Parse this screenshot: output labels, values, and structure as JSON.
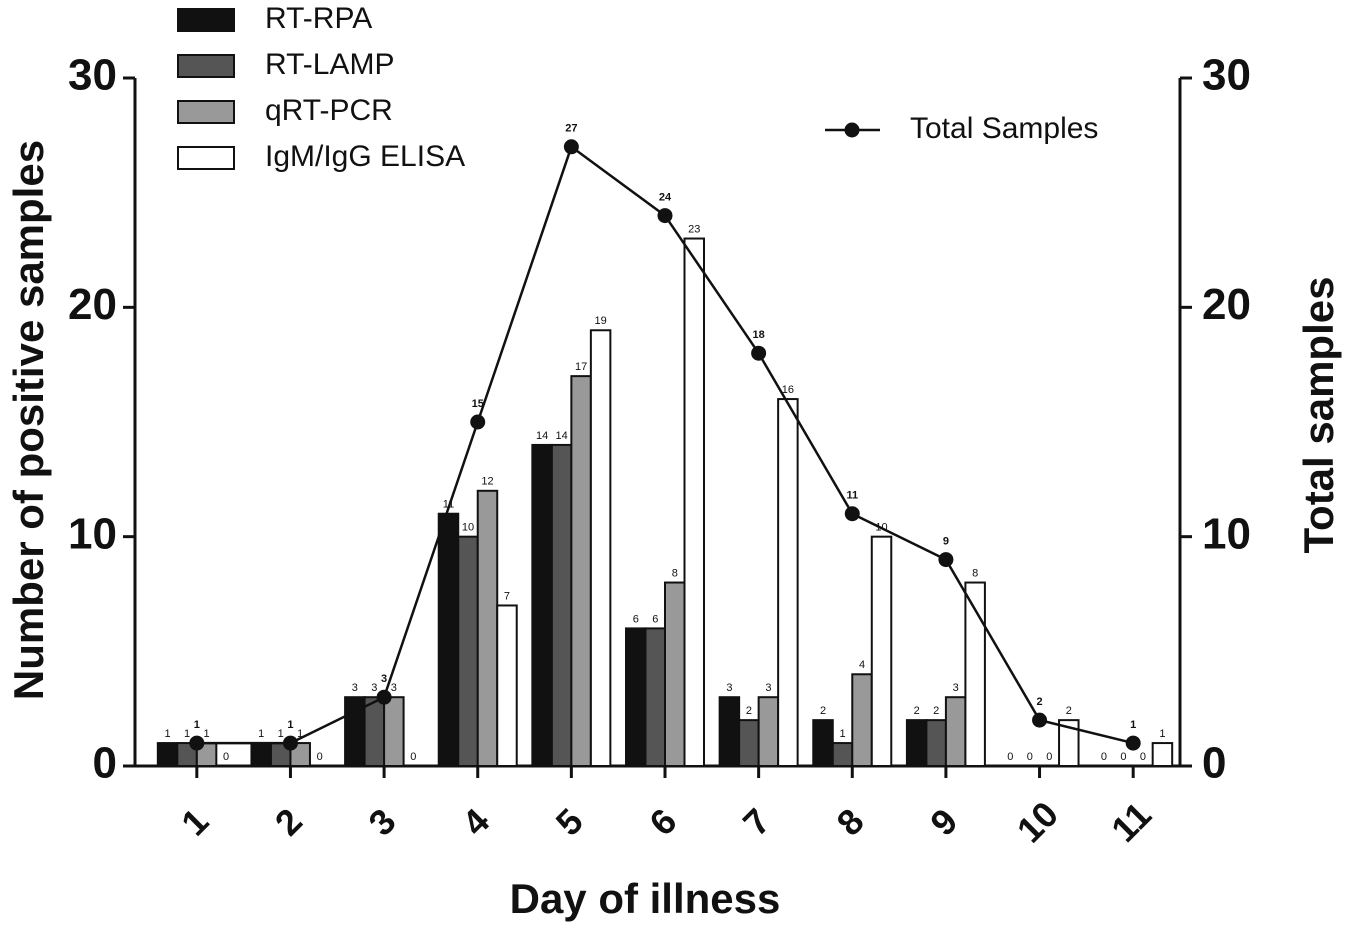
{
  "chart_data": {
    "type": "bar",
    "xlabel": "Day of illness",
    "ylabel": "Number of positive samples",
    "y2label": "Total samples",
    "categories": [
      "1",
      "2",
      "3",
      "4",
      "5",
      "6",
      "7",
      "8",
      "9",
      "10",
      "11"
    ],
    "series": [
      {
        "name": "RT-RPA",
        "color": "#111111",
        "values": [
          1,
          1,
          3,
          11,
          14,
          6,
          3,
          2,
          2,
          0,
          0
        ]
      },
      {
        "name": "RT-LAMP",
        "color": "#555555",
        "values": [
          1,
          1,
          3,
          10,
          14,
          6,
          2,
          1,
          2,
          0,
          0
        ]
      },
      {
        "name": "qRT-PCR",
        "color": "#999999",
        "values": [
          1,
          1,
          3,
          12,
          17,
          8,
          3,
          4,
          3,
          0,
          0
        ]
      },
      {
        "name": "IgM/IgG ELISA",
        "color": "#ffffff",
        "values": [
          0,
          0,
          0,
          7,
          19,
          23,
          16,
          10,
          8,
          2,
          1
        ]
      },
      {
        "name": "Total Samples",
        "color": "#111111",
        "type": "line",
        "axis": "y2",
        "values": [
          1,
          1,
          3,
          15,
          27,
          24,
          18,
          11,
          9,
          2,
          1
        ]
      }
    ],
    "ylim": [
      0,
      30
    ],
    "yticks": [
      0,
      10,
      20,
      30
    ],
    "y2lim": [
      0,
      30
    ],
    "y2ticks": [
      0,
      10,
      20,
      30
    ]
  }
}
